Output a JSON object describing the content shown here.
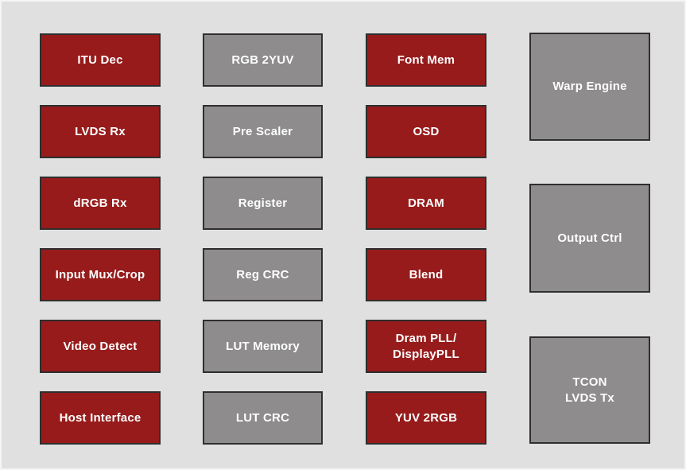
{
  "diagram": {
    "colors": {
      "red": "#971b1b",
      "gray": "#8e8c8c",
      "background": "#e0e0e0",
      "block_border": "#2f2f2f",
      "text": "#ffffff"
    },
    "columns": [
      {
        "blocks": [
          {
            "label": "ITU Dec",
            "color": "red"
          },
          {
            "label": "LVDS Rx",
            "color": "red"
          },
          {
            "label": "dRGB Rx",
            "color": "red"
          },
          {
            "label": "Input Mux/Crop",
            "color": "red"
          },
          {
            "label": "Video Detect",
            "color": "red"
          },
          {
            "label": "Host Interface",
            "color": "red"
          }
        ]
      },
      {
        "blocks": [
          {
            "label": "RGB 2YUV",
            "color": "gray"
          },
          {
            "label": "Pre Scaler",
            "color": "gray"
          },
          {
            "label": "Register",
            "color": "gray"
          },
          {
            "label": "Reg CRC",
            "color": "gray"
          },
          {
            "label": "LUT Memory",
            "color": "gray"
          },
          {
            "label": "LUT CRC",
            "color": "gray"
          }
        ]
      },
      {
        "blocks": [
          {
            "label": "Font Mem",
            "color": "red"
          },
          {
            "label": "OSD",
            "color": "red"
          },
          {
            "label": "DRAM",
            "color": "red"
          },
          {
            "label": "Blend",
            "color": "red"
          },
          {
            "label": "Dram PLL/\nDisplayPLL",
            "color": "red"
          },
          {
            "label": "YUV 2RGB",
            "color": "red"
          }
        ]
      },
      {
        "blocks": [
          {
            "label": "Warp Engine",
            "color": "gray"
          },
          {
            "label": "Output Ctrl",
            "color": "gray"
          },
          {
            "label": "TCON\nLVDS Tx",
            "color": "gray"
          }
        ]
      }
    ]
  }
}
